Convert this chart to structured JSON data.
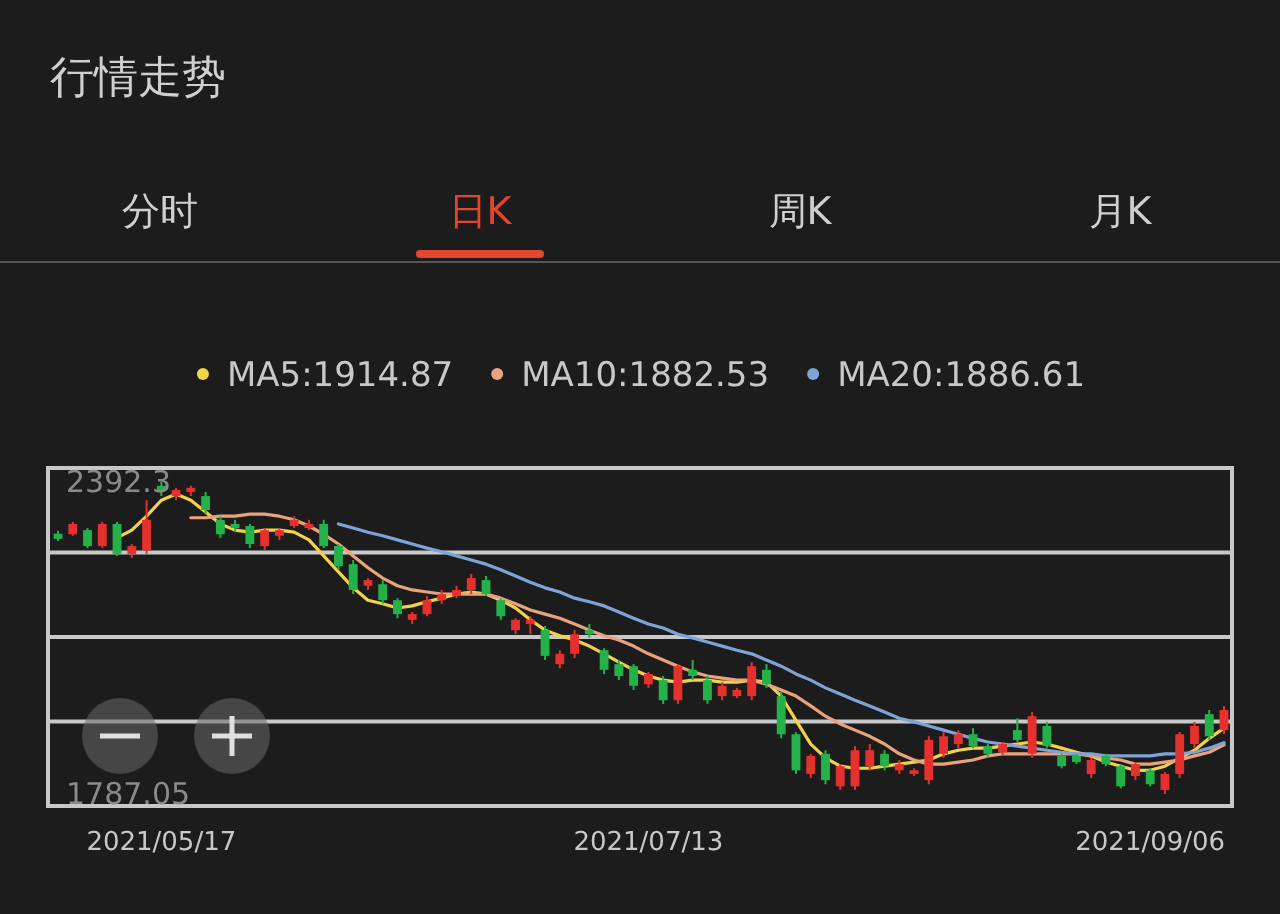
{
  "chart_data": {
    "type": "candlestick",
    "title": "行情走势",
    "annotations": [
      "分时",
      "日K",
      "周K",
      "月K"
    ],
    "ylim": [
      1763.8,
      2419.5
    ],
    "yticks": [
      2392.3,
      1787.05
    ],
    "tick_labels": "y",
    "legend": "top",
    "grid": "y",
    "categories": [
      null,
      null,
      null,
      null,
      null,
      null,
      null,
      "2021/05/17",
      null,
      null,
      null,
      null,
      null,
      null,
      null,
      null,
      null,
      null,
      null,
      null,
      null,
      null,
      null,
      null,
      null,
      null,
      null,
      null,
      null,
      null,
      null,
      null,
      null,
      null,
      null,
      null,
      null,
      null,
      null,
      null,
      "2021/07/13",
      null,
      null,
      null,
      null,
      null,
      null,
      null,
      null,
      null,
      null,
      null,
      null,
      null,
      null,
      null,
      null,
      null,
      null,
      null,
      null,
      null,
      null,
      null,
      null,
      null,
      null,
      null,
      null,
      null,
      null,
      null,
      null,
      null,
      "2021/09/06",
      null,
      null,
      null,
      null,
      null
    ],
    "ohlc": [
      [
        2292,
        2298,
        2278,
        2282
      ],
      [
        2291,
        2315,
        2288,
        2311
      ],
      [
        2299,
        2303,
        2264,
        2268
      ],
      [
        2268,
        2315,
        2264,
        2311
      ],
      [
        2311,
        2315,
        2249,
        2253
      ],
      [
        2253,
        2272,
        2245,
        2268
      ],
      [
        2260,
        2357,
        2253,
        2319
      ],
      [
        2385,
        2392.3,
        2365,
        2377
      ],
      [
        2365,
        2381,
        2357,
        2377
      ],
      [
        2373,
        2385,
        2365,
        2381
      ],
      [
        2365,
        2373,
        2330,
        2338
      ],
      [
        2319,
        2326,
        2284,
        2291
      ],
      [
        2311,
        2319,
        2295,
        2303
      ],
      [
        2307,
        2311,
        2264,
        2272
      ],
      [
        2268,
        2303,
        2260,
        2299
      ],
      [
        2288,
        2303,
        2280,
        2299
      ],
      [
        2307,
        2326,
        2303,
        2319
      ],
      [
        2303,
        2319,
        2299,
        2311
      ],
      [
        2311,
        2319,
        2264,
        2268
      ],
      [
        2268,
        2272,
        2222,
        2229
      ],
      [
        2233,
        2241,
        2175,
        2183
      ],
      [
        2191,
        2206,
        2183,
        2202
      ],
      [
        2194,
        2202,
        2156,
        2163
      ],
      [
        2163,
        2167,
        2128,
        2136
      ],
      [
        2125,
        2140,
        2117,
        2136
      ],
      [
        2136,
        2171,
        2132,
        2163
      ],
      [
        2163,
        2183,
        2156,
        2175
      ],
      [
        2171,
        2191,
        2167,
        2183
      ],
      [
        2183,
        2214,
        2175,
        2206
      ],
      [
        2202,
        2210,
        2171,
        2175
      ],
      [
        2163,
        2167,
        2125,
        2132
      ],
      [
        2105,
        2128,
        2097,
        2125
      ],
      [
        2117,
        2132,
        2097,
        2125
      ],
      [
        2105,
        2113,
        2047,
        2055
      ],
      [
        2039,
        2066,
        2031,
        2059
      ],
      [
        2059,
        2105,
        2051,
        2097
      ],
      [
        2105,
        2117,
        2090,
        2097
      ],
      [
        2066,
        2070,
        2020,
        2028
      ],
      [
        2039,
        2047,
        2008,
        2016
      ],
      [
        2035,
        2039,
        1989,
        1997
      ],
      [
        2000,
        2024,
        1993,
        2020
      ],
      [
        2008,
        2016,
        1962,
        1969
      ],
      [
        1969,
        2039,
        1962,
        2035
      ],
      [
        2028,
        2047,
        2008,
        2016
      ],
      [
        2008,
        2016,
        1962,
        1969
      ],
      [
        1977,
        2004,
        1969,
        1997
      ],
      [
        1977,
        1993,
        1973,
        1989
      ],
      [
        1977,
        2043,
        1969,
        2035
      ],
      [
        2028,
        2039,
        1993,
        2000
      ],
      [
        1977,
        1985,
        1895,
        1903
      ],
      [
        1903,
        1907,
        1826,
        1833
      ],
      [
        1826,
        1865,
        1818,
        1861
      ],
      [
        1865,
        1872,
        1806,
        1814
      ],
      [
        1802,
        1845,
        1795,
        1841
      ],
      [
        1802,
        1880,
        1795,
        1872
      ],
      [
        1841,
        1884,
        1833,
        1872
      ],
      [
        1865,
        1872,
        1833,
        1841
      ],
      [
        1833,
        1853,
        1826,
        1845
      ],
      [
        1826,
        1837,
        1822,
        1833
      ],
      [
        1814,
        1899,
        1806,
        1892
      ],
      [
        1865,
        1907,
        1857,
        1899
      ],
      [
        1884,
        1911,
        1876,
        1903
      ],
      [
        1903,
        1915,
        1876,
        1880
      ],
      [
        1880,
        1884,
        1857,
        1865
      ],
      [
        1868,
        1888,
        1861,
        1884
      ],
      [
        1911,
        1934,
        1888,
        1892
      ],
      [
        1865,
        1946,
        1857,
        1938
      ],
      [
        1919,
        1927,
        1876,
        1880
      ],
      [
        1861,
        1865,
        1837,
        1841
      ],
      [
        1861,
        1865,
        1845,
        1849
      ],
      [
        1826,
        1857,
        1818,
        1853
      ],
      [
        1861,
        1865,
        1841,
        1845
      ],
      [
        1841,
        1845,
        1798,
        1802
      ],
      [
        1822,
        1849,
        1814,
        1845
      ],
      [
        1833,
        1837,
        1802,
        1806
      ],
      [
        1795,
        1830,
        1787.05,
        1826
      ],
      [
        1826,
        1907,
        1818,
        1903
      ],
      [
        1884,
        1927,
        1876,
        1919
      ],
      [
        1942,
        1950,
        1892,
        1899
      ],
      [
        1911,
        1958,
        1903,
        1950
      ]
    ],
    "series": [
      {
        "name": "MA5:1914.87",
        "type": "line",
        "color": "#f2d14b",
        "values": [
          null,
          null,
          null,
          null,
          2284,
          2299,
          2326,
          2357,
          2369,
          2357,
          2334,
          2311,
          2299,
          2295,
          2299,
          2299,
          2295,
          2280,
          2249,
          2218,
          2187,
          2163,
          2156,
          2148,
          2152,
          2160,
          2167,
          2175,
          2179,
          2175,
          2163,
          2148,
          2125,
          2105,
          2094,
          2086,
          2074,
          2059,
          2043,
          2028,
          2016,
          2008,
          2004,
          2008,
          2008,
          2004,
          2004,
          2008,
          2004,
          1977,
          1930,
          1884,
          1857,
          1841,
          1837,
          1837,
          1841,
          1845,
          1849,
          1853,
          1865,
          1872,
          1876,
          1876,
          1880,
          1884,
          1888,
          1884,
          1876,
          1868,
          1861,
          1849,
          1841,
          1833,
          1833,
          1841,
          1857,
          1872,
          1895,
          1914.87
        ]
      },
      {
        "name": "MA10:1882.53",
        "type": "line",
        "color": "#e9a27c",
        "values": [
          null,
          null,
          null,
          null,
          null,
          null,
          null,
          null,
          null,
          2323,
          2323,
          2326,
          2326,
          2330,
          2330,
          2326,
          2319,
          2307,
          2291,
          2272,
          2249,
          2226,
          2206,
          2191,
          2183,
          2179,
          2175,
          2175,
          2175,
          2175,
          2167,
          2156,
          2144,
          2136,
          2128,
          2117,
          2105,
          2094,
          2086,
          2074,
          2059,
          2047,
          2035,
          2024,
          2016,
          2012,
          2008,
          2008,
          2000,
          1989,
          1977,
          1958,
          1938,
          1923,
          1911,
          1899,
          1884,
          1865,
          1853,
          1845,
          1845,
          1849,
          1853,
          1861,
          1865,
          1865,
          1865,
          1865,
          1865,
          1865,
          1861,
          1857,
          1853,
          1845,
          1845,
          1849,
          1853,
          1861,
          1868,
          1882.53
        ]
      },
      {
        "name": "MA20:1886.61",
        "type": "line",
        "color": "#7fa3d6",
        "values": [
          null,
          null,
          null,
          null,
          null,
          null,
          null,
          null,
          null,
          null,
          null,
          null,
          null,
          null,
          null,
          null,
          null,
          null,
          null,
          2311,
          2303,
          2295,
          2288,
          2280,
          2272,
          2264,
          2257,
          2249,
          2241,
          2233,
          2222,
          2210,
          2198,
          2187,
          2179,
          2167,
          2160,
          2152,
          2140,
          2128,
          2117,
          2109,
          2097,
          2090,
          2082,
          2074,
          2066,
          2059,
          2047,
          2035,
          2020,
          2008,
          1993,
          1981,
          1969,
          1958,
          1946,
          1934,
          1927,
          1919,
          1911,
          1903,
          1895,
          1888,
          1884,
          1880,
          1876,
          1872,
          1868,
          1865,
          1865,
          1861,
          1861,
          1861,
          1861,
          1865,
          1865,
          1868,
          1876,
          1886.61
        ]
      }
    ]
  }
}
